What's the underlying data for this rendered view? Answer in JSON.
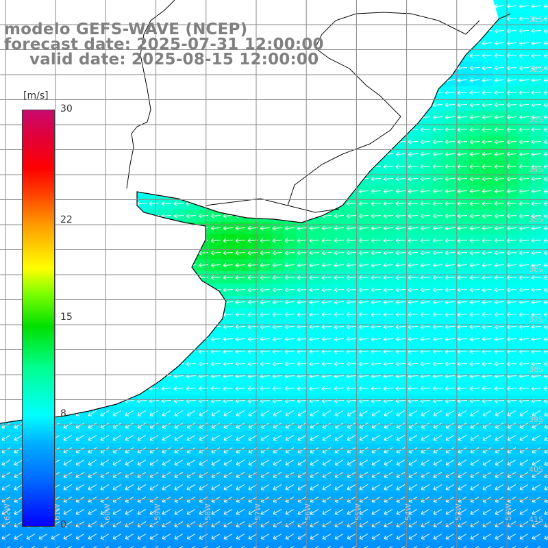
{
  "header": {
    "model": "modelo GEFS-WAVE (NCEP)",
    "forecast": "forecast date: 2025-07-31 12:00:00",
    "valid": "valid date: 2025-08-15 12:00:00"
  },
  "colorbar": {
    "unit": "[m/s]",
    "ticks": [
      {
        "value": 30,
        "label": "30"
      },
      {
        "value": 22,
        "label": "22"
      },
      {
        "value": 15,
        "label": "15"
      },
      {
        "value": 8,
        "label": "8"
      },
      {
        "value": 0,
        "label": "0"
      }
    ],
    "min": 0,
    "max": 30
  },
  "map": {
    "lat_labels": [
      "31S",
      "32S",
      "33S",
      "34S",
      "35S",
      "36S",
      "37S",
      "38S",
      "39S",
      "40S",
      "41S"
    ],
    "lon_labels": [
      "62W",
      "61W",
      "60W",
      "59W",
      "58W",
      "57W",
      "56W",
      "55W",
      "54W",
      "53W",
      "52W",
      "51W"
    ],
    "colors": {
      "land": "#ffffff",
      "grid": "#888888",
      "coast": "#000000",
      "arrow": "#ffffff"
    },
    "wind_direction_note": "predominantly easterly flow"
  }
}
